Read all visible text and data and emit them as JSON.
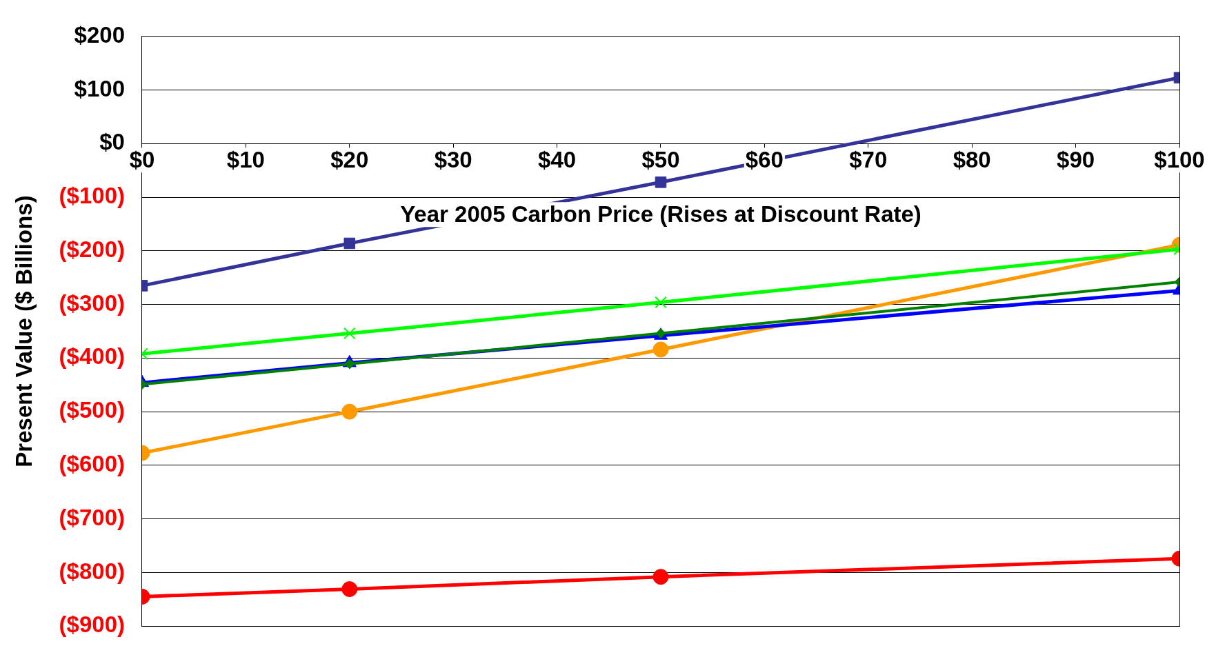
{
  "chart_data": {
    "type": "line",
    "xlabel": "Year 2005 Carbon Price (Rises at Discount Rate)",
    "ylabel": "Present Value ($ Billions)",
    "x": [
      0,
      20,
      50,
      100
    ],
    "xlim": [
      0,
      100
    ],
    "xticks": [
      {
        "value": 0,
        "label": "$0"
      },
      {
        "value": 10,
        "label": "$10"
      },
      {
        "value": 20,
        "label": "$20"
      },
      {
        "value": 30,
        "label": "$30"
      },
      {
        "value": 40,
        "label": "$40"
      },
      {
        "value": 50,
        "label": "$50"
      },
      {
        "value": 60,
        "label": "$60"
      },
      {
        "value": 70,
        "label": "$70"
      },
      {
        "value": 80,
        "label": "$80"
      },
      {
        "value": 90,
        "label": "$90"
      },
      {
        "value": 100,
        "label": "$100"
      }
    ],
    "ylim": [
      -900,
      200
    ],
    "yticks": [
      {
        "value": -900,
        "label": "($900)"
      },
      {
        "value": -800,
        "label": "($800)"
      },
      {
        "value": -700,
        "label": "($700)"
      },
      {
        "value": -600,
        "label": "($600)"
      },
      {
        "value": -500,
        "label": "($500)"
      },
      {
        "value": -400,
        "label": "($400)"
      },
      {
        "value": -300,
        "label": "($300)"
      },
      {
        "value": -200,
        "label": "($200)"
      },
      {
        "value": -100,
        "label": "($100)"
      },
      {
        "value": 0,
        "label": "$0"
      },
      {
        "value": 100,
        "label": "$100"
      },
      {
        "value": 200,
        "label": "$200"
      }
    ],
    "grid": "y",
    "legend": false,
    "line_style": "solid",
    "series": [
      {
        "color": "#333399",
        "marker": "square",
        "values": [
          -265,
          -186,
          -72,
          123
        ]
      },
      {
        "color": "#00ff00",
        "marker": "cross",
        "values": [
          -392,
          -354,
          -296,
          -197
        ]
      },
      {
        "color": "#008000",
        "marker": "diamond",
        "values": [
          -449,
          -411,
          -354,
          -258
        ]
      },
      {
        "color": "#0000ff",
        "marker": "triangle",
        "values": [
          -446,
          -409,
          -358,
          -274
        ]
      },
      {
        "color": "#ff9900",
        "marker": "circle",
        "values": [
          -577,
          -500,
          -384,
          -189
        ]
      },
      {
        "color": "#ff0000",
        "marker": "circle",
        "values": [
          -845,
          -831,
          -808,
          -774
        ]
      }
    ]
  }
}
